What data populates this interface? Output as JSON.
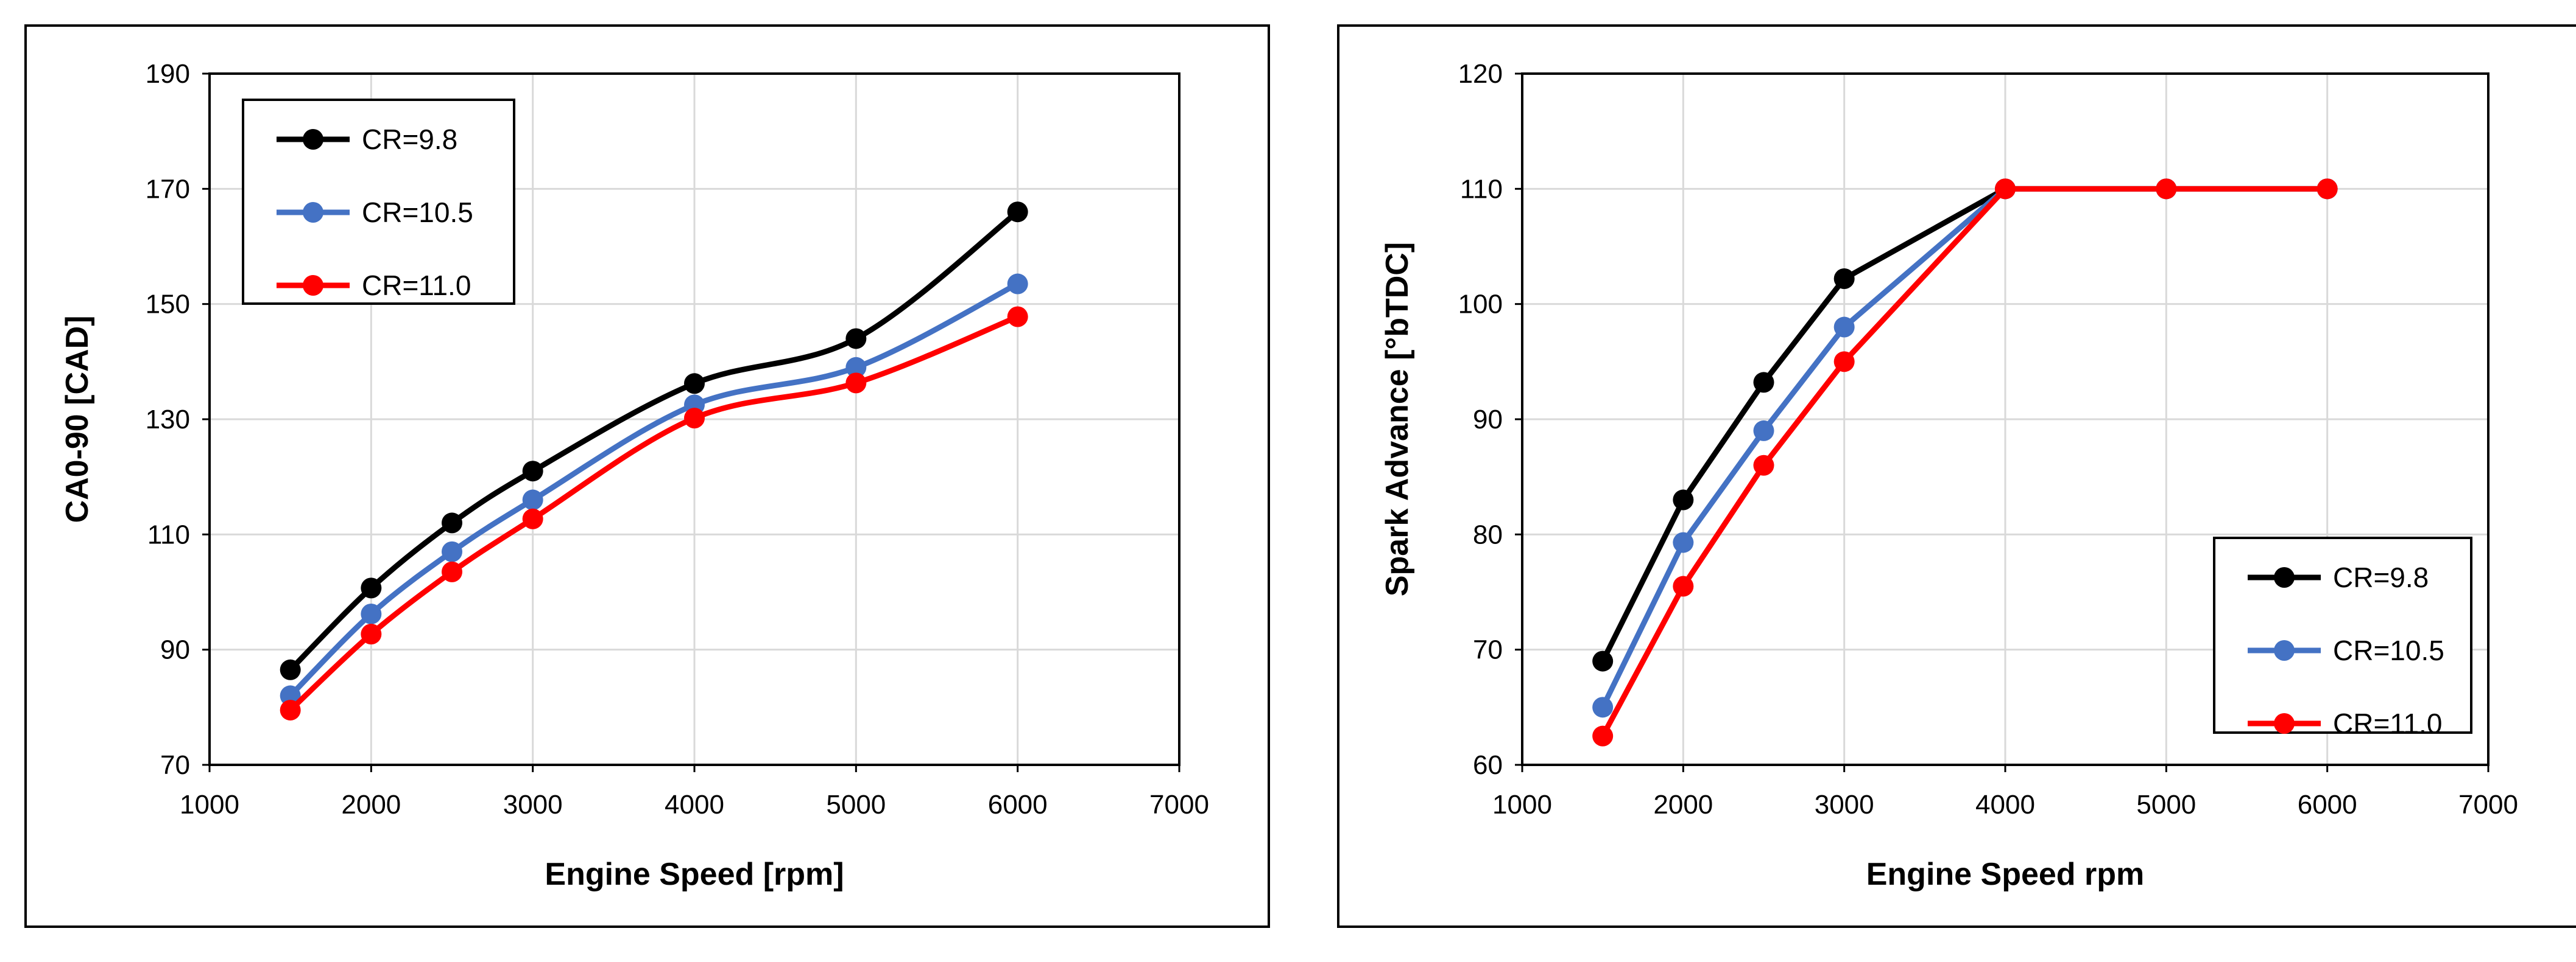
{
  "chart_data": [
    {
      "type": "line",
      "title": "",
      "xlabel": "Engine Speed [rpm]",
      "ylabel": "CA0-90 [CAD]",
      "xlim": [
        1000,
        7000
      ],
      "ylim": [
        70,
        190
      ],
      "xticks": [
        1000,
        2000,
        3000,
        4000,
        5000,
        6000,
        7000
      ],
      "yticks": [
        70,
        90,
        110,
        130,
        150,
        170,
        190
      ],
      "smooth": true,
      "grid": true,
      "legend_position": "top-left",
      "x": [
        1500,
        2000,
        2500,
        3000,
        4000,
        5000,
        6000
      ],
      "series": [
        {
          "name": "CR=9.8",
          "color": "#000000",
          "values": [
            86.5,
            100.7,
            112,
            121,
            136.2,
            144,
            166
          ]
        },
        {
          "name": "CR=10.5",
          "color": "#4472C4",
          "values": [
            82,
            96.2,
            107,
            116,
            132.5,
            139,
            153.5
          ]
        },
        {
          "name": "CR=11.0",
          "color": "#FF0000",
          "values": [
            79.5,
            92.7,
            103.5,
            112.7,
            130.2,
            136.3,
            147.8
          ]
        }
      ]
    },
    {
      "type": "line",
      "title": "",
      "xlabel": "Engine Speed rpm",
      "ylabel": "Spark Advance [°bTDC]",
      "xlim": [
        1000,
        7000
      ],
      "ylim": [
        60,
        120
      ],
      "xticks": [
        1000,
        2000,
        3000,
        4000,
        5000,
        6000,
        7000
      ],
      "yticks": [
        60,
        70,
        80,
        90,
        100,
        110,
        120
      ],
      "smooth": false,
      "grid": true,
      "legend_position": "bottom-right",
      "x": [
        1500,
        2000,
        2500,
        3000,
        4000,
        5000,
        6000
      ],
      "series": [
        {
          "name": "CR=9.8",
          "color": "#000000",
          "values": [
            69,
            83,
            93.2,
            102.2,
            110,
            110,
            110
          ]
        },
        {
          "name": "CR=10.5",
          "color": "#4472C4",
          "values": [
            65,
            79.3,
            89,
            98,
            110,
            110,
            110
          ]
        },
        {
          "name": "CR=11.0",
          "color": "#FF0000",
          "values": [
            62.5,
            75.5,
            86,
            95,
            110,
            110,
            110
          ]
        }
      ]
    }
  ]
}
